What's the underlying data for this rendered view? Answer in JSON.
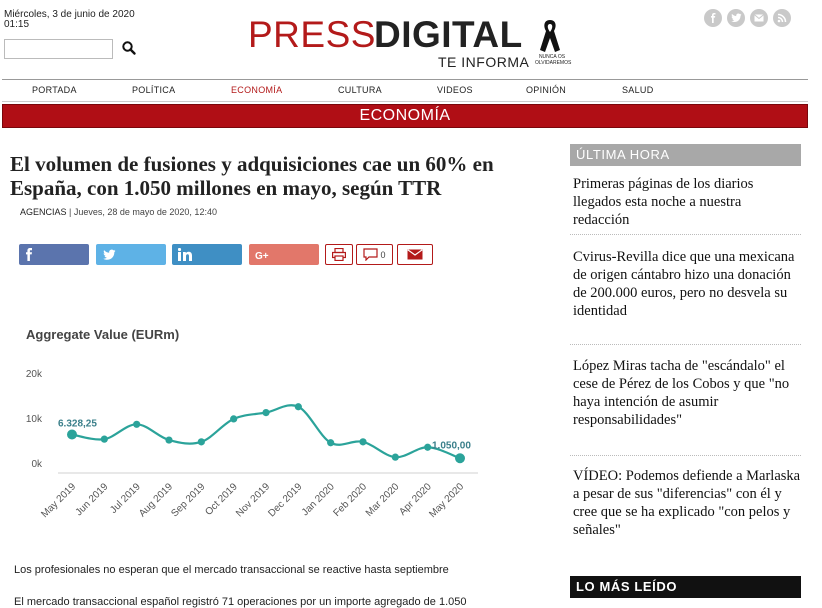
{
  "header": {
    "date": "Miércoles, 3 de junio de 2020",
    "time": "01:15",
    "logo_press": "PRESS",
    "logo_digital": "DIGITAL",
    "logo_tagline": "TE INFORMA",
    "logo_ribbon_text": "NUNCA OS OLVIDAREMOS"
  },
  "nav": [
    "PORTADA",
    "POLÍTICA",
    "ECONOMÍA",
    "CULTURA",
    "VIDEOS",
    "OPINIÓN",
    "SALUD"
  ],
  "section_title": "ECONOMÍA",
  "article": {
    "headline": "El volumen de fusiones y adquisiciones cae un 60% en España, con 1.050 millones en mayo, según TTR",
    "source": "AGENCIAS",
    "dateline": " | Jueves, 28 de mayo de 2020, 12:40",
    "comments_count": "0",
    "para1": "Los profesionales no esperan que el mercado transaccional se reactive hasta septiembre",
    "para2": "El mercado transaccional español registró 71 operaciones por un importe agregado de 1.050"
  },
  "colors": {
    "brand_red": "#b31a1a",
    "facebook": "#5b74ad",
    "twitter": "#5eb2e6",
    "linkedin": "#3f8fc4",
    "googleplus": "#e2776a",
    "line": "#2ba39a"
  },
  "chart_data": {
    "type": "line",
    "title": "Aggregate Value (EURm)",
    "categories": [
      "May 2019",
      "Jun 2019",
      "Jul 2019",
      "Aug 2019",
      "Sep 2019",
      "Oct 2019",
      "Nov 2019",
      "Dec 2019",
      "Jan 2020",
      "Feb 2020",
      "Mar 2020",
      "Apr 2020",
      "May 2020"
    ],
    "values": [
      6328.25,
      5300,
      8600,
      5100,
      4700,
      9800,
      11200,
      12500,
      4500,
      4700,
      1300,
      3500,
      1050
    ],
    "y_ticks": [
      "20k",
      "10k",
      "0k"
    ],
    "ylim": [
      0,
      20000
    ],
    "data_labels": {
      "first": "6.328,25",
      "last": "1.050,00"
    },
    "grid": false
  },
  "sidebar": {
    "ultima_title": "ÚLTIMA HORA",
    "news": [
      "Primeras páginas de los diarios llegados esta noche a nuestra redacción",
      "Cvirus-Revilla dice que una mexicana de origen cántabro hizo una donación de 200.000 euros, pero no desvela su identidad",
      "López Miras tacha de \"escándalo\" el cese de Pérez de los Cobos y que \"no haya intención de asumir responsabilidades\"",
      "VÍDEO: Podemos defiende a Marlaska a pesar de sus \"diferencias\" con él y cree que se ha explicado \"con pelos y señales\""
    ],
    "mas_leido_title": "LO MÁS LEÍDO"
  }
}
